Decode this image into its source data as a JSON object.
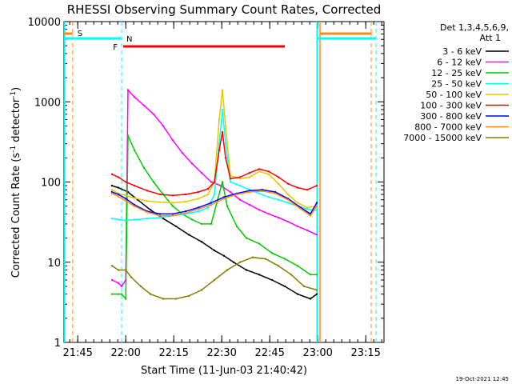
{
  "chart_data": {
    "type": "line",
    "title": "RHESSI Observing Summary Count Rates, Corrected",
    "xlabel": "Start Time (11-Jun-03 21:40:42)",
    "ylabel": "Corrected Count Rate (s",
    "ylabel_sup1": "-1",
    "ylabel_mid": " detector",
    "ylabel_sup2": "-1",
    "ylabel_end": ")",
    "y_scale": "log",
    "ylim": [
      1,
      10000
    ],
    "xlim": [
      0,
      100
    ],
    "x_ticks": [
      {
        "label": "21:45",
        "x": 4.3
      },
      {
        "label": "22:00",
        "x": 19.3
      },
      {
        "label": "22:15",
        "x": 34.3
      },
      {
        "label": "22:30",
        "x": 49.3
      },
      {
        "label": "22:45",
        "x": 64.3
      },
      {
        "label": "23:00",
        "x": 79.3
      },
      {
        "label": "23:15",
        "x": 94.3
      }
    ],
    "y_ticks": [
      {
        "label": "1",
        "value": 1
      },
      {
        "label": "10",
        "value": 10
      },
      {
        "label": "100",
        "value": 100
      },
      {
        "label": "1000",
        "value": 1000
      },
      {
        "label": "10000",
        "value": 10000
      }
    ],
    "legend_header": [
      "Det 1,3,4,5,6,9,",
      "Att 1"
    ],
    "legend_position": "top-right outside",
    "series": [
      {
        "name": "3 - 6 keV",
        "color": "#000000",
        "x": [
          15,
          17,
          20,
          23,
          27,
          31,
          35,
          39,
          43,
          47,
          50,
          53,
          57,
          61,
          65,
          69,
          73,
          77,
          79
        ],
        "values": [
          90,
          85,
          75,
          60,
          45,
          35,
          28,
          22,
          18,
          14,
          12,
          10,
          8,
          7,
          6,
          5,
          4,
          3.5,
          4
        ]
      },
      {
        "name": "6 - 12 keV",
        "color": "#ff00ff",
        "x": [
          15,
          17,
          18,
          19.3,
          20,
          22,
          25,
          28,
          31,
          34,
          37,
          40,
          43,
          46,
          49,
          52,
          55,
          58,
          61,
          64,
          67,
          70,
          73,
          76,
          79
        ],
        "values": [
          6,
          5.5,
          5,
          6,
          1400,
          1150,
          900,
          700,
          500,
          330,
          230,
          170,
          130,
          100,
          90,
          75,
          60,
          52,
          45,
          40,
          36,
          32,
          28,
          25,
          22
        ]
      },
      {
        "name": "12 - 25 keV",
        "color": "#00cc00",
        "x": [
          15,
          17,
          18,
          19.3,
          20,
          22,
          25,
          28,
          31,
          34,
          37,
          40,
          43,
          46,
          48,
          49.5,
          51,
          54,
          57,
          61,
          65,
          69,
          73,
          77,
          79
        ],
        "values": [
          4,
          4,
          4,
          3.5,
          380,
          250,
          150,
          100,
          70,
          50,
          40,
          34,
          30,
          30,
          60,
          100,
          50,
          28,
          20,
          17,
          13,
          11,
          9,
          7,
          7
        ]
      },
      {
        "name": "25 - 50 keV",
        "color": "#00ffff",
        "x": [
          15,
          17,
          19.3,
          22,
          26,
          30,
          34,
          38,
          42,
          45,
          47,
          48.5,
          49.5,
          50.5,
          52,
          55,
          58,
          61,
          64,
          67,
          70,
          73,
          76,
          79
        ],
        "values": [
          35,
          34,
          33,
          34,
          35,
          36,
          38,
          40,
          43,
          48,
          70,
          300,
          800,
          300,
          100,
          90,
          80,
          72,
          65,
          60,
          55,
          50,
          46,
          44
        ]
      },
      {
        "name": "50 - 100 keV",
        "color": "#e6c800",
        "x": [
          15,
          17,
          19.3,
          22,
          26,
          30,
          34,
          38,
          42,
          45,
          47,
          48.5,
          49.5,
          50.5,
          52,
          55,
          58,
          61,
          64,
          67,
          70,
          73,
          76,
          79
        ],
        "values": [
          80,
          72,
          68,
          63,
          58,
          56,
          55,
          57,
          62,
          70,
          100,
          600,
          1400,
          500,
          120,
          110,
          115,
          135,
          125,
          95,
          70,
          55,
          48,
          50
        ]
      },
      {
        "name": "100 - 300 keV",
        "color": "#ff0000",
        "x": [
          15,
          17,
          19.3,
          22,
          26,
          30,
          34,
          38,
          42,
          45,
          47,
          48.5,
          49.5,
          50.5,
          52,
          55,
          58,
          61,
          64,
          67,
          70,
          73,
          76,
          79
        ],
        "values": [
          125,
          115,
          100,
          90,
          78,
          70,
          68,
          70,
          75,
          82,
          100,
          250,
          420,
          200,
          110,
          115,
          130,
          145,
          135,
          115,
          95,
          85,
          80,
          90
        ]
      },
      {
        "name": "300 - 800 keV",
        "color": "#0000ff",
        "x": [
          15,
          17,
          19.3,
          22,
          26,
          30,
          34,
          38,
          42,
          46,
          50,
          54,
          58,
          62,
          66,
          70,
          74,
          77,
          79
        ],
        "values": [
          75,
          70,
          62,
          52,
          43,
          40,
          40,
          43,
          48,
          55,
          65,
          72,
          78,
          80,
          75,
          62,
          48,
          40,
          55
        ]
      },
      {
        "name": "800 - 7000 keV",
        "color": "#ff8c1a",
        "x": [
          15,
          17,
          19.3,
          22,
          26,
          30,
          34,
          38,
          42,
          46,
          50,
          54,
          58,
          62,
          66,
          70,
          74,
          77,
          79
        ],
        "values": [
          72,
          66,
          58,
          50,
          42,
          38,
          38,
          41,
          46,
          52,
          62,
          70,
          75,
          77,
          72,
          60,
          46,
          38,
          50
        ]
      },
      {
        "name": "7000 - 15000 keV",
        "color": "#808000",
        "x": [
          15,
          17,
          19.3,
          21,
          24,
          27,
          31,
          35,
          39,
          43,
          47,
          51,
          55,
          59,
          63,
          67,
          71,
          75,
          79
        ],
        "values": [
          9,
          8,
          8,
          6.5,
          5,
          4,
          3.5,
          3.5,
          3.8,
          4.5,
          6,
          8,
          10,
          11.5,
          11,
          9,
          7,
          5,
          4.5
        ]
      }
    ],
    "markers": {
      "S": {
        "label": "S",
        "color": "#ff8c1a"
      },
      "N": {
        "label": "N",
        "color": "#00ffff"
      },
      "F": {
        "label": "F",
        "color": "#ff0000"
      }
    }
  },
  "footer": {
    "date": "19-Oct-2021 12:45"
  }
}
